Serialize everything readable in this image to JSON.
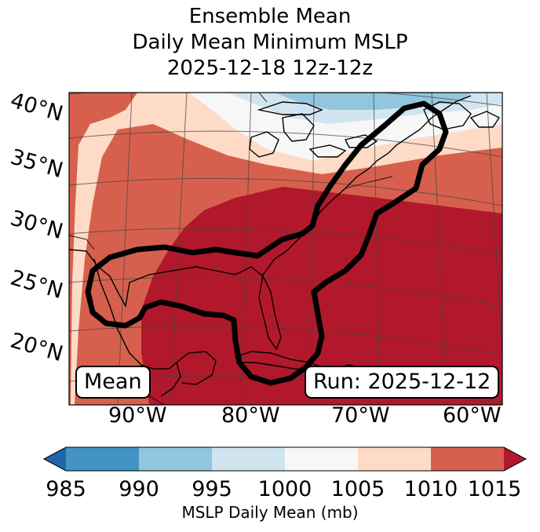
{
  "title": {
    "line1": "Ensemble Mean",
    "line2": "Daily Mean Minimum MSLP",
    "line3": "2025-12-18 12z-12z"
  },
  "map": {
    "lat_labels": [
      "40°N",
      "35°N",
      "30°N",
      "25°N",
      "20°N"
    ],
    "lon_labels": [
      "90°W",
      "80°W",
      "70°W",
      "60°W"
    ],
    "mean_badge": "Mean",
    "run_badge": "Run: 2025-12-12"
  },
  "colorbar": {
    "ticks": [
      "985",
      "990",
      "995",
      "1000",
      "1005",
      "1010",
      "1015"
    ],
    "label": "MSLP Daily Mean (mb)",
    "colors": {
      "under": "#2166ac",
      "b985_990": "#4393c3",
      "b990_995": "#92c5de",
      "b995_1000": "#d1e5f0",
      "b1000_1005": "#f7f7f7",
      "b1005_1010": "#fddbc7",
      "b1010_1015": "#d6604d",
      "over": "#b2182b"
    }
  }
}
